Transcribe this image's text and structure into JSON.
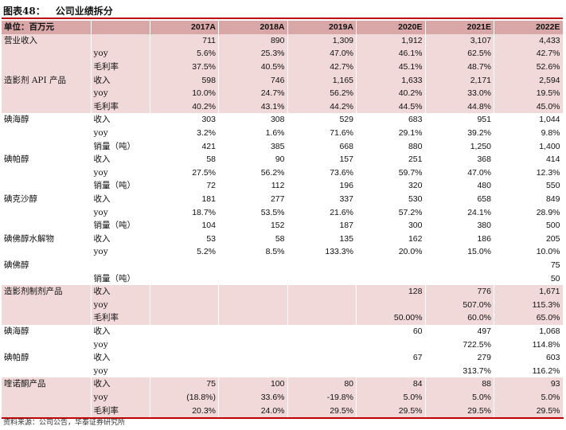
{
  "figure": {
    "label": "图表48：",
    "title": "公司业绩拆分"
  },
  "header": {
    "unit": "单位：百万元",
    "years": [
      "2017A",
      "2018A",
      "2019A",
      "2020E",
      "2021E",
      "2022E"
    ]
  },
  "rows": [
    {
      "label": "营业收入",
      "sub": "",
      "values": [
        "711",
        "890",
        "1,309",
        "1,912",
        "3,107",
        "4,433"
      ],
      "shade": "pink"
    },
    {
      "label": "",
      "sub": "yoy",
      "values": [
        "5.6%",
        "25.3%",
        "47.0%",
        "46.1%",
        "62.5%",
        "42.7%"
      ],
      "shade": "pink"
    },
    {
      "label": "",
      "sub": "毛利率",
      "values": [
        "37.5%",
        "40.5%",
        "42.7%",
        "45.1%",
        "48.7%",
        "52.6%"
      ],
      "shade": "pink"
    },
    {
      "label": "造影剂 API 产品",
      "sub": "收入",
      "values": [
        "598",
        "746",
        "1,165",
        "1,633",
        "2,171",
        "2,594"
      ],
      "shade": "pink"
    },
    {
      "label": "",
      "sub": "yoy",
      "values": [
        "10.0%",
        "24.7%",
        "56.2%",
        "40.2%",
        "33.0%",
        "19.5%"
      ],
      "shade": "pink"
    },
    {
      "label": "",
      "sub": "毛利率",
      "values": [
        "40.2%",
        "43.1%",
        "44.2%",
        "44.5%",
        "44.8%",
        "45.0%"
      ],
      "shade": "pink"
    },
    {
      "label": "碘海醇",
      "sub": "收入",
      "values": [
        "303",
        "308",
        "529",
        "683",
        "951",
        "1,044"
      ],
      "shade": "white"
    },
    {
      "label": "",
      "sub": "yoy",
      "values": [
        "3.2%",
        "1.6%",
        "71.6%",
        "29.1%",
        "39.2%",
        "9.8%"
      ],
      "shade": "white"
    },
    {
      "label": "",
      "sub": "销量（吨）",
      "values": [
        "421",
        "385",
        "668",
        "880",
        "1,250",
        "1,400"
      ],
      "shade": "white"
    },
    {
      "label": "碘帕醇",
      "sub": "收入",
      "values": [
        "58",
        "90",
        "157",
        "251",
        "368",
        "414"
      ],
      "shade": "white"
    },
    {
      "label": "",
      "sub": "yoy",
      "values": [
        "27.5%",
        "56.2%",
        "73.6%",
        "59.7%",
        "47.0%",
        "12.3%"
      ],
      "shade": "white"
    },
    {
      "label": "",
      "sub": "销量（吨）",
      "values": [
        "72",
        "112",
        "196",
        "320",
        "480",
        "550"
      ],
      "shade": "white"
    },
    {
      "label": "碘克沙醇",
      "sub": "收入",
      "values": [
        "181",
        "277",
        "337",
        "530",
        "658",
        "849"
      ],
      "shade": "white"
    },
    {
      "label": "",
      "sub": "yoy",
      "values": [
        "18.7%",
        "53.5%",
        "21.6%",
        "57.2%",
        "24.1%",
        "28.9%"
      ],
      "shade": "white"
    },
    {
      "label": "",
      "sub": "销量（吨）",
      "values": [
        "104",
        "152",
        "187",
        "300",
        "380",
        "500"
      ],
      "shade": "white"
    },
    {
      "label": "碘佛醇水解物",
      "sub": "收入",
      "values": [
        "53",
        "58",
        "135",
        "162",
        "186",
        "205"
      ],
      "shade": "white"
    },
    {
      "label": "",
      "sub": "yoy",
      "values": [
        "5.2%",
        "8.5%",
        "133.3%",
        "20.0%",
        "15.0%",
        "10.0%"
      ],
      "shade": "white"
    },
    {
      "label": "碘佛醇",
      "sub": "",
      "values": [
        "",
        "",
        "",
        "",
        "",
        "75"
      ],
      "shade": "white"
    },
    {
      "label": "",
      "sub": "销量（吨）",
      "values": [
        "",
        "",
        "",
        "",
        "",
        "50"
      ],
      "shade": "white"
    },
    {
      "label": "造影剂制剂产品",
      "sub": "收入",
      "values": [
        "",
        "",
        "",
        "128",
        "776",
        "1,671"
      ],
      "shade": "pink"
    },
    {
      "label": "",
      "sub": "yoy",
      "values": [
        "",
        "",
        "",
        "",
        "507.0%",
        "115.3%"
      ],
      "shade": "pink"
    },
    {
      "label": "",
      "sub": "毛利率",
      "values": [
        "",
        "",
        "",
        "50.00%",
        "60.0%",
        "65.0%"
      ],
      "shade": "pink"
    },
    {
      "label": "碘海醇",
      "sub": "收入",
      "values": [
        "",
        "",
        "",
        "60",
        "497",
        "1,068"
      ],
      "shade": "white"
    },
    {
      "label": "",
      "sub": "yoy",
      "values": [
        "",
        "",
        "",
        "",
        "722.5%",
        "114.8%"
      ],
      "shade": "white"
    },
    {
      "label": "碘帕醇",
      "sub": "收入",
      "values": [
        "",
        "",
        "",
        "67",
        "279",
        "603"
      ],
      "shade": "white"
    },
    {
      "label": "",
      "sub": "yoy",
      "values": [
        "",
        "",
        "",
        "",
        "313.7%",
        "116.2%"
      ],
      "shade": "white"
    },
    {
      "label": "喹诺酮产品",
      "sub": "收入",
      "values": [
        "75",
        "100",
        "80",
        "84",
        "88",
        "93"
      ],
      "shade": "pink"
    },
    {
      "label": "",
      "sub": "yoy",
      "values": [
        "(18.8%)",
        "33.6%",
        "-19.8%",
        "5.0%",
        "5.0%",
        "5.0%"
      ],
      "shade": "pink"
    },
    {
      "label": "",
      "sub": "毛利率",
      "values": [
        "20.3%",
        "24.0%",
        "29.5%",
        "29.5%",
        "29.5%",
        "29.5%"
      ],
      "shade": "pink"
    }
  ],
  "source": "资料来源：公司公告，华泰证券研究所",
  "colors": {
    "header_fill": "#d9a7a7",
    "band_fill": "#f2d9d9",
    "rule": "#c00000"
  }
}
